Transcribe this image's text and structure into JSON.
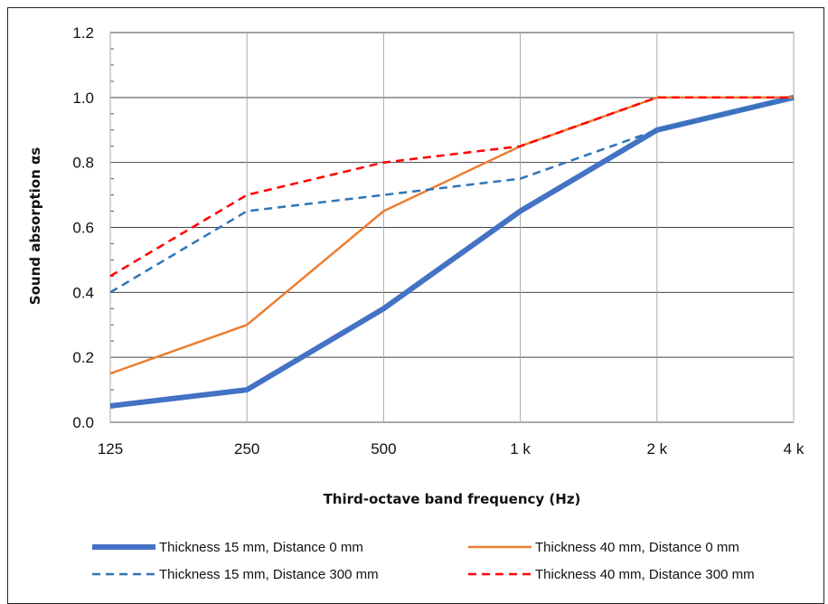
{
  "chart_data": {
    "type": "line",
    "xlabel": "Third-octave band frequency (Hz)",
    "ylabel": "Sound absorption αs",
    "categories": [
      "125",
      "250",
      "500",
      "1 k",
      "2 k",
      "4 k"
    ],
    "ylim": [
      0,
      1.2
    ],
    "yticks": [
      "0.0",
      "0.2",
      "0.4",
      "0.6",
      "0.8",
      "1.0",
      "1.2"
    ],
    "grid": true,
    "legend_position": "bottom",
    "series": [
      {
        "name": "Thickness 15 mm, Distance 0 mm",
        "values": [
          0.05,
          0.1,
          0.35,
          0.65,
          0.9,
          1.0
        ],
        "color": "#4472C4",
        "style": "solid-thick"
      },
      {
        "name": "Thickness 40 mm, Distance 0 mm",
        "values": [
          0.15,
          0.3,
          0.65,
          0.85,
          1.0,
          1.0
        ],
        "color": "#ED7D31",
        "style": "solid"
      },
      {
        "name": "Thickness 15 mm, Distance 300 mm",
        "values": [
          0.4,
          0.65,
          0.7,
          0.75,
          0.9,
          1.0
        ],
        "color": "#2E75B6",
        "style": "dashed"
      },
      {
        "name": "Thickness 40 mm, Distance 300 mm",
        "values": [
          0.45,
          0.7,
          0.8,
          0.85,
          1.0,
          1.0
        ],
        "color": "#FF0000",
        "style": "dashed"
      }
    ]
  }
}
